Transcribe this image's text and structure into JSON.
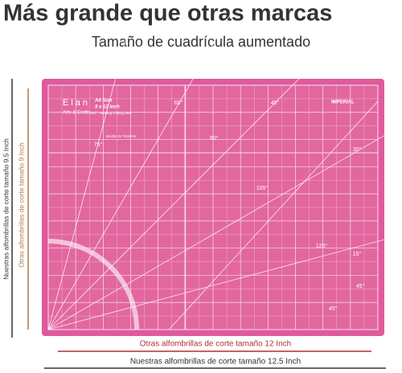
{
  "header": {
    "title": "Más grande que otras marcas",
    "subtitle": "Tamaño de cuadrícula aumentado"
  },
  "mat": {
    "brand": "Elan",
    "brand_sub": "Arts & Crafts",
    "size": "A4 Size",
    "dimensions": "9 x 12 Inch",
    "product": "Self - Healing Cutting Mat",
    "system": "IMPERIAL",
    "origin": "MADE IN TAIWAN",
    "angles": [
      "60°",
      "45°",
      "75°",
      "90°",
      "30°",
      "105°",
      "120°",
      "15°",
      "45°",
      "45°"
    ]
  },
  "dimensions": {
    "left_outer": "Nuestras alfombrillas de corte tamaño 9.5 Inch",
    "left_inner": "Otras alfombrillas de corte tamaño 9 Inch",
    "bottom_inner": "Otras alfombrillas de corte tamaño 12 Inch",
    "bottom_outer": "Nuestras alfombrillas de corte tamaño 12.5 Inch"
  }
}
